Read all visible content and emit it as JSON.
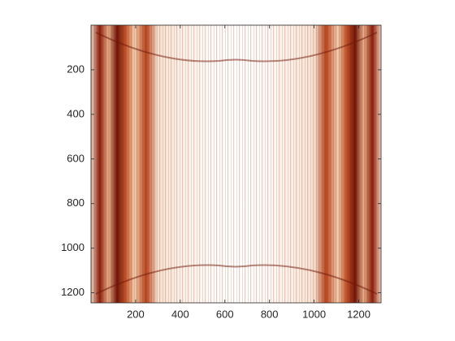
{
  "chart_data": {
    "type": "image",
    "xlim": [
      0,
      1300
    ],
    "ylim": [
      0,
      1245
    ],
    "y_reversed": true,
    "xticks": [
      200,
      400,
      600,
      800,
      1000,
      1200
    ],
    "yticks": [
      200,
      400,
      600,
      800,
      1000,
      1200
    ]
  }
}
